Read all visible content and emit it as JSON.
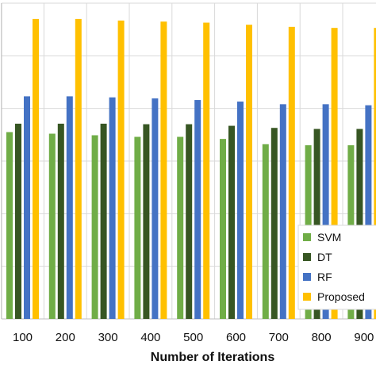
{
  "chart_data": {
    "type": "bar",
    "title": "",
    "xlabel": "Number of Iterations",
    "ylabel": "",
    "categories": [
      "100",
      "200",
      "300",
      "400",
      "500",
      "600",
      "700",
      "800",
      "900"
    ],
    "ylim": [
      0,
      60
    ],
    "grid": true,
    "legend_position": "bottom-right",
    "series": [
      {
        "name": "SVM",
        "color": "#70ad47",
        "values": [
          35.5,
          35.2,
          34.9,
          34.6,
          34.6,
          34.2,
          33.2,
          33.0,
          33.0
        ]
      },
      {
        "name": "DT",
        "color": "#375623",
        "values": [
          37.1,
          37.1,
          37.1,
          37.0,
          37.0,
          36.7,
          36.3,
          36.1,
          36.1
        ]
      },
      {
        "name": "RF",
        "color": "#4472c4",
        "values": [
          42.3,
          42.3,
          42.1,
          41.9,
          41.6,
          41.3,
          40.8,
          40.8,
          40.6
        ]
      },
      {
        "name": "Proposed",
        "color": "#ffc000",
        "values": [
          57.0,
          57.0,
          56.7,
          56.5,
          56.3,
          55.9,
          55.5,
          55.3,
          55.3
        ]
      }
    ]
  }
}
